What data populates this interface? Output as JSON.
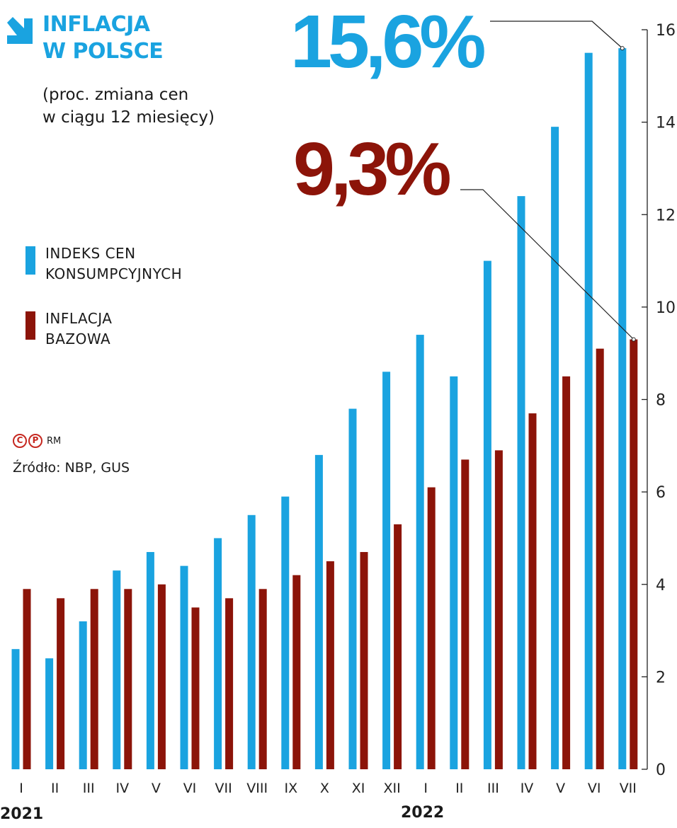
{
  "header": {
    "title_line1": "INFLACJA",
    "title_line2": "W POLSCE",
    "subtitle_line1": "(proc. zmiana cen",
    "subtitle_line2": "w ciągu 12 miesięcy)",
    "callout_cpi": "15,6%",
    "callout_core": "9,3%"
  },
  "legend": {
    "cpi_line1": "INDEKS CEN",
    "cpi_line2": "KONSUMPCYJNYCH",
    "core_line1": "INFLACJA",
    "core_line2": "BAZOWA"
  },
  "credit": {
    "icons": [
      "copyright-icon",
      "phonogram-icon"
    ],
    "icon_c": "C",
    "icon_p": "P",
    "label": "RM"
  },
  "source": "Źródło: NBP, GUS",
  "years": {
    "y2021": "2021",
    "y2022": "2022"
  },
  "colors": {
    "cpi": "#1aa3e0",
    "core": "#8c1409",
    "title": "#1aa3e0",
    "credit": "#c62820"
  },
  "chart_data": {
    "type": "bar",
    "categories": [
      "I",
      "II",
      "III",
      "IV",
      "V",
      "VI",
      "VII",
      "VIII",
      "IX",
      "X",
      "XI",
      "XII",
      "I",
      "II",
      "III",
      "IV",
      "V",
      "VI",
      "VII"
    ],
    "series": [
      {
        "name": "INDEKS CEN KONSUMPCYJNYCH",
        "values": [
          2.6,
          2.4,
          3.2,
          4.3,
          4.7,
          4.4,
          5.0,
          5.5,
          5.9,
          6.8,
          7.8,
          8.6,
          9.4,
          8.5,
          11.0,
          12.4,
          13.9,
          15.5,
          15.6
        ]
      },
      {
        "name": "INFLACJA BAZOWA",
        "values": [
          3.9,
          3.7,
          3.9,
          3.9,
          4.0,
          3.5,
          3.7,
          3.9,
          4.2,
          4.5,
          4.7,
          5.3,
          6.1,
          6.7,
          6.9,
          7.7,
          8.5,
          9.1,
          9.3
        ]
      }
    ],
    "y_ticks": [
      0,
      2,
      4,
      6,
      8,
      10,
      12,
      14,
      16
    ],
    "ylim": [
      0,
      16
    ],
    "y_axis_position": "right",
    "legend_position": "left",
    "grid": false
  }
}
